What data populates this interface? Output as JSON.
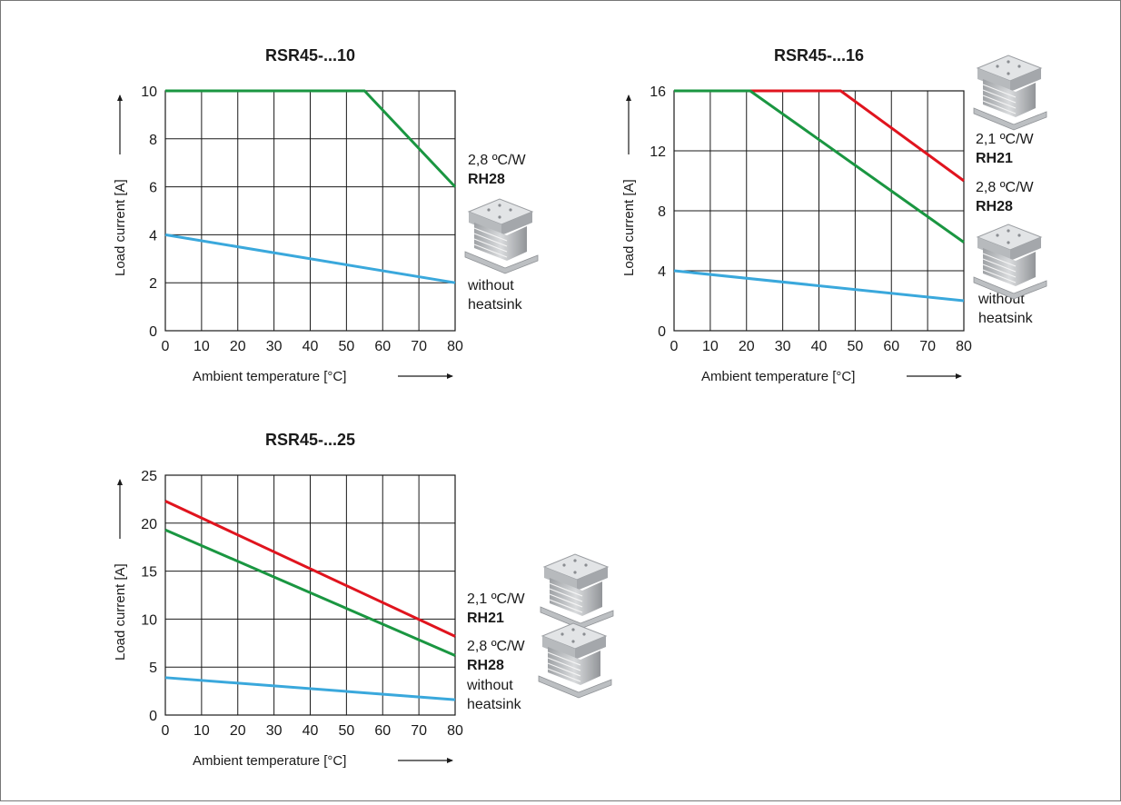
{
  "chart_data": [
    {
      "type": "line",
      "title": "RSR45-...10",
      "xlabel": "Ambient temperature [°C]",
      "ylabel": "Load current [A]",
      "xlim": [
        0,
        80
      ],
      "ylim": [
        0,
        10
      ],
      "xticks": [
        0,
        10,
        20,
        30,
        40,
        50,
        60,
        70,
        80
      ],
      "yticks": [
        0,
        2,
        4,
        6,
        8,
        10
      ],
      "grid": true,
      "series": [
        {
          "key": "rh28",
          "color": "#1a9641",
          "x": [
            0,
            55,
            80
          ],
          "y": [
            10,
            10,
            6
          ]
        },
        {
          "key": "none",
          "color": "#3aa8dc",
          "x": [
            0,
            80
          ],
          "y": [
            4,
            2
          ]
        }
      ],
      "annotations": [
        {
          "series": "rh28",
          "lines": [
            "2,8 ºC/W",
            "RH28"
          ]
        },
        {
          "series": "none",
          "lines": [
            "without",
            "heatsink"
          ]
        }
      ]
    },
    {
      "type": "line",
      "title": "RSR45-...16",
      "xlabel": "Ambient temperature [°C]",
      "ylabel": "Load current [A]",
      "xlim": [
        0,
        80
      ],
      "ylim": [
        0,
        16
      ],
      "xticks": [
        0,
        10,
        20,
        30,
        40,
        50,
        60,
        70,
        80
      ],
      "yticks": [
        0,
        4,
        8,
        12,
        16
      ],
      "grid": true,
      "series": [
        {
          "key": "rh21",
          "color": "#e0141e",
          "x": [
            0,
            46,
            80
          ],
          "y": [
            16,
            16,
            10
          ]
        },
        {
          "key": "rh28",
          "color": "#1a9641",
          "x": [
            0,
            21,
            80
          ],
          "y": [
            16,
            16,
            5.9
          ]
        },
        {
          "key": "none",
          "color": "#3aa8dc",
          "x": [
            0,
            80
          ],
          "y": [
            4,
            2
          ]
        }
      ],
      "annotations": [
        {
          "series": "rh21",
          "lines": [
            "2,1 ºC/W",
            "RH21"
          ]
        },
        {
          "series": "rh28",
          "lines": [
            "2,8 ºC/W",
            "RH28"
          ]
        },
        {
          "series": "none",
          "lines": [
            "without",
            "heatsink"
          ]
        }
      ]
    },
    {
      "type": "line",
      "title": "RSR45-...25",
      "xlabel": "Ambient temperature [°C]",
      "ylabel": "Load current [A]",
      "xlim": [
        0,
        80
      ],
      "ylim": [
        0,
        25
      ],
      "xticks": [
        0,
        10,
        20,
        30,
        40,
        50,
        60,
        70,
        80
      ],
      "yticks": [
        0,
        5,
        10,
        15,
        20,
        25
      ],
      "grid": true,
      "series": [
        {
          "key": "rh21",
          "color": "#e0141e",
          "x": [
            0,
            80
          ],
          "y": [
            22.3,
            8.2
          ]
        },
        {
          "key": "rh28",
          "color": "#1a9641",
          "x": [
            0,
            80
          ],
          "y": [
            19.3,
            6.2
          ]
        },
        {
          "key": "none",
          "color": "#3aa8dc",
          "x": [
            0,
            80
          ],
          "y": [
            3.9,
            1.6
          ]
        }
      ],
      "annotations": [
        {
          "series": "rh21",
          "lines": [
            "2,1 ºC/W",
            "RH21"
          ]
        },
        {
          "series": "rh28",
          "lines": [
            "2,8 ºC/W",
            "RH28"
          ]
        },
        {
          "series": "none",
          "lines": [
            "without",
            "heatsink"
          ]
        }
      ]
    }
  ]
}
